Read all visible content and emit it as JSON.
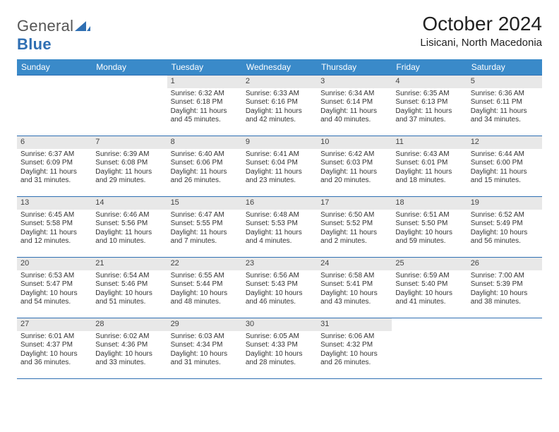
{
  "colors": {
    "header_bg": "#3a8ac9",
    "header_text": "#ffffff",
    "cell_border": "#2f6fb3",
    "daynum_bg": "#e8e8e8",
    "body_text": "#333333",
    "logo_gray": "#555555",
    "logo_blue": "#2f6fb3",
    "page_bg": "#ffffff"
  },
  "typography": {
    "title_fontsize": 28,
    "location_fontsize": 15,
    "header_fontsize": 12,
    "daynum_fontsize": 11,
    "cell_fontsize": 10
  },
  "logo": {
    "word1": "General",
    "word2": "Blue"
  },
  "title": "October 2024",
  "location": "Lisicani, North Macedonia",
  "day_headers": [
    "Sunday",
    "Monday",
    "Tuesday",
    "Wednesday",
    "Thursday",
    "Friday",
    "Saturday"
  ],
  "weeks": [
    [
      {
        "empty": true
      },
      {
        "empty": true
      },
      {
        "d": "1",
        "sr": "Sunrise: 6:32 AM",
        "ss": "Sunset: 6:18 PM",
        "dl1": "Daylight: 11 hours",
        "dl2": "and 45 minutes."
      },
      {
        "d": "2",
        "sr": "Sunrise: 6:33 AM",
        "ss": "Sunset: 6:16 PM",
        "dl1": "Daylight: 11 hours",
        "dl2": "and 42 minutes."
      },
      {
        "d": "3",
        "sr": "Sunrise: 6:34 AM",
        "ss": "Sunset: 6:14 PM",
        "dl1": "Daylight: 11 hours",
        "dl2": "and 40 minutes."
      },
      {
        "d": "4",
        "sr": "Sunrise: 6:35 AM",
        "ss": "Sunset: 6:13 PM",
        "dl1": "Daylight: 11 hours",
        "dl2": "and 37 minutes."
      },
      {
        "d": "5",
        "sr": "Sunrise: 6:36 AM",
        "ss": "Sunset: 6:11 PM",
        "dl1": "Daylight: 11 hours",
        "dl2": "and 34 minutes."
      }
    ],
    [
      {
        "d": "6",
        "sr": "Sunrise: 6:37 AM",
        "ss": "Sunset: 6:09 PM",
        "dl1": "Daylight: 11 hours",
        "dl2": "and 31 minutes."
      },
      {
        "d": "7",
        "sr": "Sunrise: 6:39 AM",
        "ss": "Sunset: 6:08 PM",
        "dl1": "Daylight: 11 hours",
        "dl2": "and 29 minutes."
      },
      {
        "d": "8",
        "sr": "Sunrise: 6:40 AM",
        "ss": "Sunset: 6:06 PM",
        "dl1": "Daylight: 11 hours",
        "dl2": "and 26 minutes."
      },
      {
        "d": "9",
        "sr": "Sunrise: 6:41 AM",
        "ss": "Sunset: 6:04 PM",
        "dl1": "Daylight: 11 hours",
        "dl2": "and 23 minutes."
      },
      {
        "d": "10",
        "sr": "Sunrise: 6:42 AM",
        "ss": "Sunset: 6:03 PM",
        "dl1": "Daylight: 11 hours",
        "dl2": "and 20 minutes."
      },
      {
        "d": "11",
        "sr": "Sunrise: 6:43 AM",
        "ss": "Sunset: 6:01 PM",
        "dl1": "Daylight: 11 hours",
        "dl2": "and 18 minutes."
      },
      {
        "d": "12",
        "sr": "Sunrise: 6:44 AM",
        "ss": "Sunset: 6:00 PM",
        "dl1": "Daylight: 11 hours",
        "dl2": "and 15 minutes."
      }
    ],
    [
      {
        "d": "13",
        "sr": "Sunrise: 6:45 AM",
        "ss": "Sunset: 5:58 PM",
        "dl1": "Daylight: 11 hours",
        "dl2": "and 12 minutes."
      },
      {
        "d": "14",
        "sr": "Sunrise: 6:46 AM",
        "ss": "Sunset: 5:56 PM",
        "dl1": "Daylight: 11 hours",
        "dl2": "and 10 minutes."
      },
      {
        "d": "15",
        "sr": "Sunrise: 6:47 AM",
        "ss": "Sunset: 5:55 PM",
        "dl1": "Daylight: 11 hours",
        "dl2": "and 7 minutes."
      },
      {
        "d": "16",
        "sr": "Sunrise: 6:48 AM",
        "ss": "Sunset: 5:53 PM",
        "dl1": "Daylight: 11 hours",
        "dl2": "and 4 minutes."
      },
      {
        "d": "17",
        "sr": "Sunrise: 6:50 AM",
        "ss": "Sunset: 5:52 PM",
        "dl1": "Daylight: 11 hours",
        "dl2": "and 2 minutes."
      },
      {
        "d": "18",
        "sr": "Sunrise: 6:51 AM",
        "ss": "Sunset: 5:50 PM",
        "dl1": "Daylight: 10 hours",
        "dl2": "and 59 minutes."
      },
      {
        "d": "19",
        "sr": "Sunrise: 6:52 AM",
        "ss": "Sunset: 5:49 PM",
        "dl1": "Daylight: 10 hours",
        "dl2": "and 56 minutes."
      }
    ],
    [
      {
        "d": "20",
        "sr": "Sunrise: 6:53 AM",
        "ss": "Sunset: 5:47 PM",
        "dl1": "Daylight: 10 hours",
        "dl2": "and 54 minutes."
      },
      {
        "d": "21",
        "sr": "Sunrise: 6:54 AM",
        "ss": "Sunset: 5:46 PM",
        "dl1": "Daylight: 10 hours",
        "dl2": "and 51 minutes."
      },
      {
        "d": "22",
        "sr": "Sunrise: 6:55 AM",
        "ss": "Sunset: 5:44 PM",
        "dl1": "Daylight: 10 hours",
        "dl2": "and 48 minutes."
      },
      {
        "d": "23",
        "sr": "Sunrise: 6:56 AM",
        "ss": "Sunset: 5:43 PM",
        "dl1": "Daylight: 10 hours",
        "dl2": "and 46 minutes."
      },
      {
        "d": "24",
        "sr": "Sunrise: 6:58 AM",
        "ss": "Sunset: 5:41 PM",
        "dl1": "Daylight: 10 hours",
        "dl2": "and 43 minutes."
      },
      {
        "d": "25",
        "sr": "Sunrise: 6:59 AM",
        "ss": "Sunset: 5:40 PM",
        "dl1": "Daylight: 10 hours",
        "dl2": "and 41 minutes."
      },
      {
        "d": "26",
        "sr": "Sunrise: 7:00 AM",
        "ss": "Sunset: 5:39 PM",
        "dl1": "Daylight: 10 hours",
        "dl2": "and 38 minutes."
      }
    ],
    [
      {
        "d": "27",
        "sr": "Sunrise: 6:01 AM",
        "ss": "Sunset: 4:37 PM",
        "dl1": "Daylight: 10 hours",
        "dl2": "and 36 minutes."
      },
      {
        "d": "28",
        "sr": "Sunrise: 6:02 AM",
        "ss": "Sunset: 4:36 PM",
        "dl1": "Daylight: 10 hours",
        "dl2": "and 33 minutes."
      },
      {
        "d": "29",
        "sr": "Sunrise: 6:03 AM",
        "ss": "Sunset: 4:34 PM",
        "dl1": "Daylight: 10 hours",
        "dl2": "and 31 minutes."
      },
      {
        "d": "30",
        "sr": "Sunrise: 6:05 AM",
        "ss": "Sunset: 4:33 PM",
        "dl1": "Daylight: 10 hours",
        "dl2": "and 28 minutes."
      },
      {
        "d": "31",
        "sr": "Sunrise: 6:06 AM",
        "ss": "Sunset: 4:32 PM",
        "dl1": "Daylight: 10 hours",
        "dl2": "and 26 minutes."
      },
      {
        "empty": true
      },
      {
        "empty": true
      }
    ]
  ]
}
